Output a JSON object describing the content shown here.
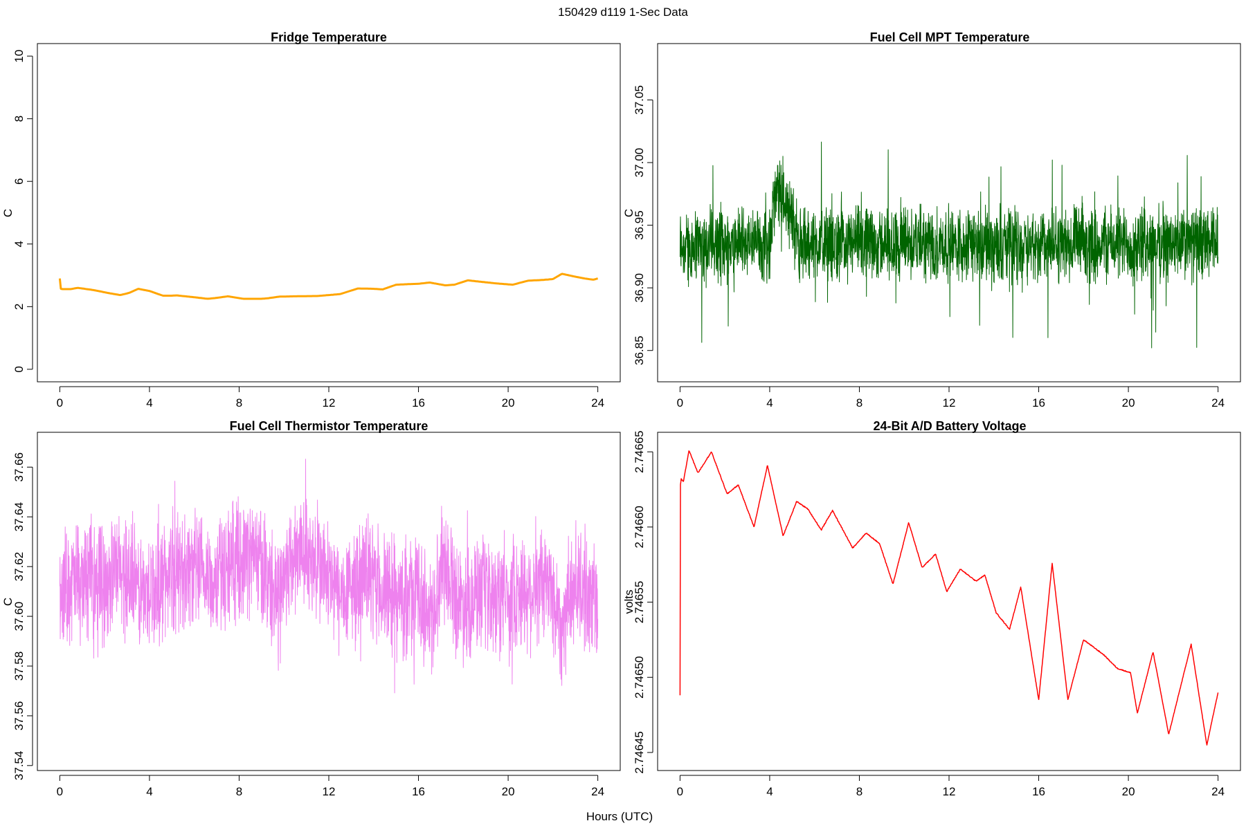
{
  "page": {
    "main_title": "150429   d119   1-Sec Data",
    "shared_xlabel": "Hours (UTC)"
  },
  "chart_data": [
    {
      "id": "fridge",
      "type": "line",
      "title": "Fridge Temperature",
      "xlabel": "",
      "ylabel": "C",
      "xlim": [
        -1,
        25
      ],
      "ylim": [
        -0.4,
        10.4
      ],
      "xticks": [
        0,
        4,
        8,
        12,
        16,
        20,
        24
      ],
      "yticks": [
        0,
        2,
        4,
        6,
        8,
        10
      ],
      "ytick_labels": [
        "0",
        "2",
        "4",
        "6",
        "8",
        "10"
      ],
      "color": "#FFA500",
      "noise": 0,
      "thickness": 3,
      "series": [
        {
          "x": [
            0,
            0.02,
            0.1,
            0.5,
            0.8,
            1.5,
            2.2,
            2.7,
            3.1,
            3.5,
            4.0,
            4.6,
            5.0,
            5.2,
            6.0,
            6.6,
            7.0,
            7.5,
            8.2,
            9.0,
            9.3,
            9.8,
            10.5,
            11.5,
            12.5,
            13.3,
            14.0,
            14.4,
            15.0,
            15.6,
            16.0,
            16.5,
            17.2,
            17.6,
            18.2,
            18.7,
            19.5,
            20.2,
            20.9,
            21.5,
            22.0,
            22.4,
            22.9,
            23.4,
            23.8,
            24.0
          ],
          "y": [
            2.9,
            2.58,
            2.56,
            2.56,
            2.6,
            2.53,
            2.43,
            2.37,
            2.44,
            2.57,
            2.5,
            2.35,
            2.35,
            2.36,
            2.3,
            2.25,
            2.28,
            2.33,
            2.25,
            2.25,
            2.27,
            2.32,
            2.33,
            2.34,
            2.4,
            2.58,
            2.57,
            2.55,
            2.7,
            2.72,
            2.73,
            2.77,
            2.68,
            2.7,
            2.84,
            2.8,
            2.74,
            2.7,
            2.83,
            2.85,
            2.88,
            3.05,
            2.97,
            2.9,
            2.86,
            2.9
          ]
        }
      ]
    },
    {
      "id": "fuelcell-mpt",
      "type": "line",
      "title": "Fuel Cell MPT Temperature",
      "xlabel": "",
      "ylabel": "C",
      "xlim": [
        -1,
        25
      ],
      "ylim": [
        36.825,
        37.095
      ],
      "xticks": [
        0,
        4,
        8,
        12,
        16,
        20,
        24
      ],
      "yticks": [
        36.85,
        36.9,
        36.95,
        37.0,
        37.05
      ],
      "ytick_labels": [
        "36.85",
        "36.90",
        "36.95",
        "37.00",
        "37.05"
      ],
      "color": "#006400",
      "noise": 0.035,
      "spikes": 0.1,
      "thickness": 1,
      "series": [
        {
          "x": [
            0,
            1,
            2,
            3,
            4,
            4.2,
            4.6,
            5.0,
            5.3,
            6,
            8,
            10,
            12,
            14,
            16,
            18,
            20,
            22,
            24
          ],
          "y": [
            36.935,
            36.935,
            36.935,
            36.935,
            36.935,
            36.97,
            36.975,
            36.955,
            36.935,
            36.935,
            36.935,
            36.935,
            36.935,
            36.935,
            36.935,
            36.935,
            36.935,
            36.935,
            36.935
          ]
        }
      ]
    },
    {
      "id": "fuelcell-thermistor",
      "type": "line",
      "title": "Fuel Cell Thermistor Temperature",
      "xlabel": "",
      "ylabel": "C",
      "xlim": [
        -1,
        25
      ],
      "ylim": [
        37.538,
        37.674
      ],
      "xticks": [
        0,
        4,
        8,
        12,
        16,
        20,
        24
      ],
      "yticks": [
        37.54,
        37.56,
        37.58,
        37.6,
        37.62,
        37.64,
        37.66
      ],
      "ytick_labels": [
        "37.54",
        "37.56",
        "37.58",
        "37.60",
        "37.62",
        "37.64",
        "37.66"
      ],
      "color": "#EE82EE",
      "noise": 0.028,
      "spikes": 0.045,
      "thickness": 1,
      "series": [
        {
          "x": [
            0,
            1,
            2,
            2.8,
            3.8,
            4.8,
            5.8,
            6.8,
            7.8,
            8.8,
            9.6,
            10.2,
            10.8,
            11.6,
            12.6,
            13.4,
            14.2,
            15.0,
            15.6,
            16.0,
            16.6,
            17.1,
            17.8,
            18.6,
            19.4,
            20.2,
            21.0,
            21.8,
            22.4,
            23.0,
            24.0
          ],
          "y": [
            37.612,
            37.614,
            37.615,
            37.618,
            37.608,
            37.616,
            37.62,
            37.614,
            37.624,
            37.624,
            37.608,
            37.62,
            37.628,
            37.62,
            37.606,
            37.616,
            37.612,
            37.606,
            37.608,
            37.61,
            37.598,
            37.625,
            37.605,
            37.608,
            37.606,
            37.61,
            37.61,
            37.614,
            37.596,
            37.614,
            37.604
          ]
        }
      ]
    },
    {
      "id": "battery-voltage",
      "type": "line",
      "title": "24-Bit A/D Battery Voltage",
      "xlabel": "",
      "ylabel": "volts",
      "xlim": [
        -1,
        25
      ],
      "ylim": [
        2.746438,
        2.746663
      ],
      "xticks": [
        0,
        4,
        8,
        12,
        16,
        20,
        24
      ],
      "yticks": [
        2.74645,
        2.7465,
        2.74655,
        2.7466,
        2.74665
      ],
      "ytick_labels": [
        "2.74645",
        "2.74650",
        "2.74655",
        "2.74660",
        "2.74665"
      ],
      "color": "#FF0000",
      "noise": 6e-07,
      "thickness": 1.5,
      "series": [
        {
          "x": [
            0,
            0.02,
            0.05,
            0.15,
            0.4,
            0.8,
            1.4,
            2.1,
            2.6,
            3.3,
            3.9,
            4.6,
            5.2,
            5.7,
            6.3,
            6.8,
            7.7,
            8.3,
            8.9,
            9.5,
            10.2,
            10.8,
            11.4,
            11.9,
            12.5,
            13.2,
            13.6,
            14.1,
            14.7,
            15.2,
            16.0,
            16.6,
            17.3,
            18.0,
            18.9,
            19.5,
            20.1,
            20.4,
            21.1,
            21.8,
            22.8,
            23.5,
            24.0
          ],
          "y": [
            2.746488,
            2.746628,
            2.746632,
            2.74663,
            2.746651,
            2.746636,
            2.74665,
            2.746622,
            2.746628,
            2.7466,
            2.746641,
            2.746594,
            2.746617,
            2.746612,
            2.746598,
            2.746611,
            2.746586,
            2.746596,
            2.746589,
            2.746562,
            2.746603,
            2.746573,
            2.746582,
            2.746557,
            2.746572,
            2.746564,
            2.746568,
            2.746543,
            2.746532,
            2.74656,
            2.746485,
            2.746576,
            2.746485,
            2.746525,
            2.746515,
            2.746506,
            2.746503,
            2.746476,
            2.746517,
            2.746462,
            2.746522,
            2.746455,
            2.74649
          ]
        }
      ]
    }
  ]
}
